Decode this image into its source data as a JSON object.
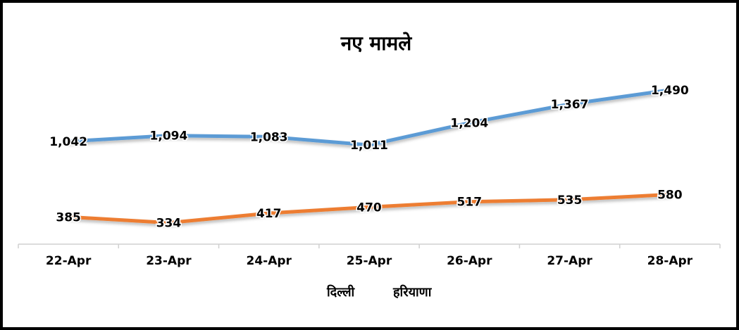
{
  "chart_data": {
    "type": "line",
    "title": "नए मामले",
    "categories": [
      "22-Apr",
      "23-Apr",
      "24-Apr",
      "25-Apr",
      "26-Apr",
      "27-Apr",
      "28-Apr"
    ],
    "series": [
      {
        "name": "दिल्ली",
        "color": "#5B9BD5",
        "values": [
          1042,
          1094,
          1083,
          1011,
          1204,
          1367,
          1490
        ],
        "labels": [
          "1,042",
          "1,094",
          "1,083",
          "1,011",
          "1,204",
          "1,367",
          "1,490"
        ]
      },
      {
        "name": "हरियाणा",
        "color": "#ED7D31",
        "values": [
          385,
          334,
          417,
          470,
          517,
          535,
          580
        ],
        "labels": [
          "385",
          "334",
          "417",
          "470",
          "517",
          "535",
          "580"
        ]
      }
    ],
    "grid": false,
    "legend_position": "bottom",
    "data_labels": true
  }
}
